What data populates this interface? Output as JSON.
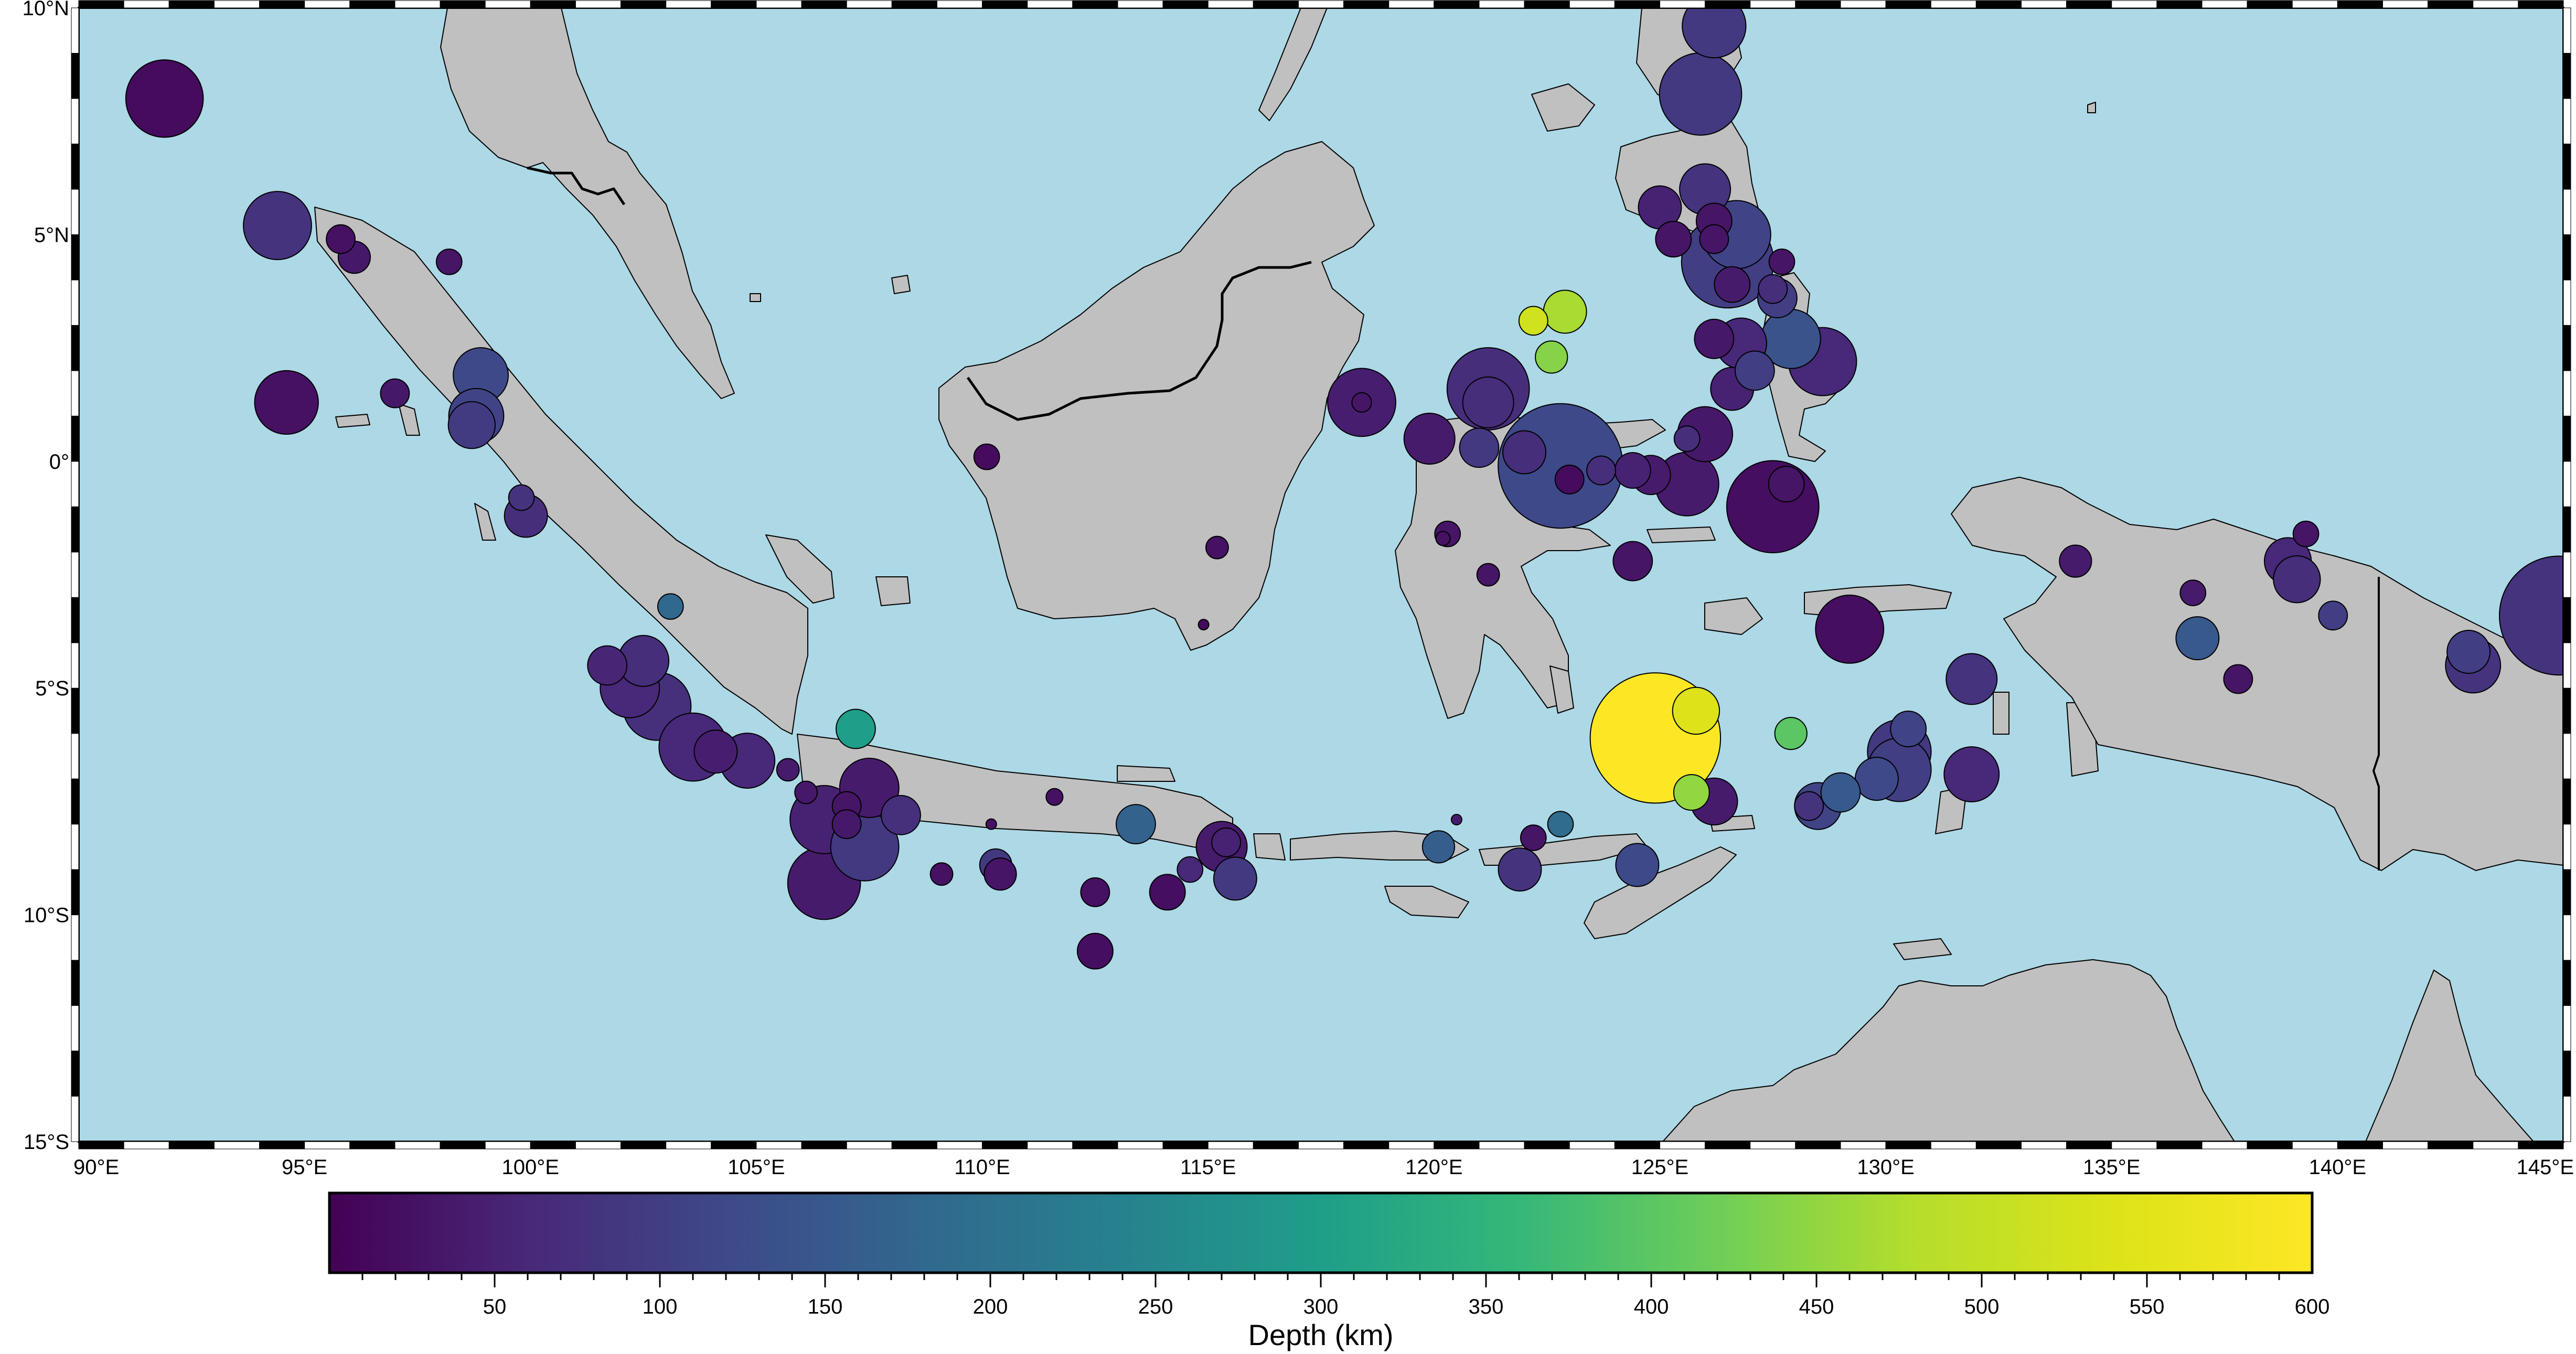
{
  "map": {
    "region": {
      "west": 90,
      "east": 145,
      "south": -15,
      "north": 10
    },
    "colors": {
      "ocean": "#add8e6",
      "land": "#c0c0c0",
      "coast": "#000000",
      "border": "#000000"
    },
    "lon_ticks": [
      "90°E",
      "95°E",
      "100°E",
      "105°E",
      "110°E",
      "115°E",
      "120°E",
      "125°E",
      "130°E",
      "135°E",
      "140°E",
      "145°E"
    ],
    "lat_ticks": [
      "10°N",
      "5°N",
      "0°",
      "5°S",
      "10°S",
      "15°S"
    ]
  },
  "colorbar": {
    "title": "Depth (km)",
    "ticks": [
      "50",
      "100",
      "150",
      "200",
      "250",
      "300",
      "350",
      "400",
      "450",
      "500",
      "550",
      "600"
    ],
    "range": [
      0,
      600
    ],
    "colormap": "viridis"
  },
  "chart_data": {
    "type": "scatter",
    "title": "",
    "xlabel": "",
    "ylabel": "",
    "color_label": "Depth (km)",
    "size_encoding": "magnitude",
    "points": [
      {
        "lon": 91.9,
        "lat": 8.0,
        "depth": 15,
        "mag": 6.2
      },
      {
        "lon": 94.4,
        "lat": 5.2,
        "depth": 80,
        "mag": 6.0
      },
      {
        "lon": 94.6,
        "lat": 1.3,
        "depth": 25,
        "mag": 5.9
      },
      {
        "lon": 95.8,
        "lat": 4.9,
        "depth": 25,
        "mag": 5.0
      },
      {
        "lon": 96.1,
        "lat": 4.5,
        "depth": 35,
        "mag": 5.1
      },
      {
        "lon": 97.0,
        "lat": 1.5,
        "depth": 35,
        "mag": 5.0
      },
      {
        "lon": 98.2,
        "lat": 4.4,
        "depth": 30,
        "mag": 4.9
      },
      {
        "lon": 98.9,
        "lat": 1.9,
        "depth": 120,
        "mag": 5.7
      },
      {
        "lon": 98.8,
        "lat": 1.0,
        "depth": 110,
        "mag": 5.7
      },
      {
        "lon": 98.7,
        "lat": 0.8,
        "depth": 95,
        "mag": 5.5
      },
      {
        "lon": 99.8,
        "lat": -0.8,
        "depth": 80,
        "mag": 4.9
      },
      {
        "lon": 99.9,
        "lat": -1.2,
        "depth": 70,
        "mag": 5.4
      },
      {
        "lon": 103.1,
        "lat": -3.2,
        "depth": 180,
        "mag": 4.9
      },
      {
        "lon": 101.7,
        "lat": -4.5,
        "depth": 55,
        "mag": 5.3
      },
      {
        "lon": 102.2,
        "lat": -5.0,
        "depth": 60,
        "mag": 5.8
      },
      {
        "lon": 102.5,
        "lat": -4.4,
        "depth": 70,
        "mag": 5.6
      },
      {
        "lon": 102.8,
        "lat": -5.4,
        "depth": 75,
        "mag": 6.0
      },
      {
        "lon": 103.6,
        "lat": -6.3,
        "depth": 60,
        "mag": 6.0
      },
      {
        "lon": 104.1,
        "lat": -6.4,
        "depth": 45,
        "mag": 5.4
      },
      {
        "lon": 104.8,
        "lat": -6.6,
        "depth": 60,
        "mag": 5.7
      },
      {
        "lon": 105.7,
        "lat": -6.8,
        "depth": 40,
        "mag": 4.8
      },
      {
        "lon": 106.1,
        "lat": -7.3,
        "depth": 35,
        "mag": 4.8
      },
      {
        "lon": 107.2,
        "lat": -5.9,
        "depth": 300,
        "mag": 5.3
      },
      {
        "lon": 107.5,
        "lat": -7.2,
        "depth": 40,
        "mag": 5.8
      },
      {
        "lon": 106.5,
        "lat": -7.9,
        "depth": 50,
        "mag": 6.0
      },
      {
        "lon": 107.0,
        "lat": -7.6,
        "depth": 30,
        "mag": 5.0
      },
      {
        "lon": 107.0,
        "lat": -8.0,
        "depth": 35,
        "mag": 5.0
      },
      {
        "lon": 107.4,
        "lat": -8.5,
        "depth": 90,
        "mag": 6.0
      },
      {
        "lon": 108.2,
        "lat": -7.8,
        "depth": 75,
        "mag": 5.3
      },
      {
        "lon": 106.5,
        "lat": -9.3,
        "depth": 40,
        "mag": 6.1
      },
      {
        "lon": 109.1,
        "lat": -9.1,
        "depth": 25,
        "mag": 4.8
      },
      {
        "lon": 110.2,
        "lat": -8.0,
        "depth": 25,
        "mag": 4.3
      },
      {
        "lon": 110.3,
        "lat": -8.9,
        "depth": 90,
        "mag": 5.1
      },
      {
        "lon": 110.4,
        "lat": -9.1,
        "depth": 30,
        "mag": 5.1
      },
      {
        "lon": 111.6,
        "lat": -7.4,
        "depth": 25,
        "mag": 4.6
      },
      {
        "lon": 112.5,
        "lat": -9.5,
        "depth": 25,
        "mag": 5.0
      },
      {
        "lon": 112.5,
        "lat": -10.8,
        "depth": 20,
        "mag": 5.2
      },
      {
        "lon": 113.4,
        "lat": -8.0,
        "depth": 170,
        "mag": 5.3
      },
      {
        "lon": 114.1,
        "lat": -9.5,
        "depth": 20,
        "mag": 5.2
      },
      {
        "lon": 114.6,
        "lat": -9.0,
        "depth": 60,
        "mag": 4.9
      },
      {
        "lon": 115.3,
        "lat": -8.5,
        "depth": 40,
        "mag": 5.6
      },
      {
        "lon": 115.4,
        "lat": -8.4,
        "depth": 50,
        "mag": 5.0
      },
      {
        "lon": 115.6,
        "lat": -9.2,
        "depth": 90,
        "mag": 5.4
      },
      {
        "lon": 110.1,
        "lat": 0.1,
        "depth": 15,
        "mag": 4.9
      },
      {
        "lon": 115.2,
        "lat": -1.9,
        "depth": 25,
        "mag": 4.8
      },
      {
        "lon": 114.9,
        "lat": -3.6,
        "depth": 15,
        "mag": 4.3
      },
      {
        "lon": 118.4,
        "lat": 1.3,
        "depth": 45,
        "mag": 6.0
      },
      {
        "lon": 118.4,
        "lat": 1.3,
        "depth": 30,
        "mag": 4.7
      },
      {
        "lon": 119.9,
        "lat": 0.5,
        "depth": 40,
        "mag": 5.6
      },
      {
        "lon": 120.3,
        "lat": -1.6,
        "depth": 30,
        "mag": 4.9
      },
      {
        "lon": 120.2,
        "lat": -1.7,
        "depth": 25,
        "mag": 4.5
      },
      {
        "lon": 121.2,
        "lat": 1.6,
        "depth": 70,
        "mag": 6.3
      },
      {
        "lon": 121.2,
        "lat": 1.3,
        "depth": 70,
        "mag": 5.6
      },
      {
        "lon": 121.0,
        "lat": 0.3,
        "depth": 90,
        "mag": 5.3
      },
      {
        "lon": 121.2,
        "lat": -2.5,
        "depth": 30,
        "mag": 4.8
      },
      {
        "lon": 120.1,
        "lat": -8.5,
        "depth": 160,
        "mag": 5.1
      },
      {
        "lon": 120.5,
        "lat": -7.9,
        "depth": 40,
        "mag": 4.3
      },
      {
        "lon": 122.0,
        "lat": 0.2,
        "depth": 70,
        "mag": 5.4
      },
      {
        "lon": 122.8,
        "lat": -0.1,
        "depth": 120,
        "mag": 7.1
      },
      {
        "lon": 123.0,
        "lat": -0.4,
        "depth": 15,
        "mag": 5.0
      },
      {
        "lon": 122.2,
        "lat": 3.1,
        "depth": 520,
        "mag": 5.0
      },
      {
        "lon": 122.9,
        "lat": 3.3,
        "depth": 470,
        "mag": 5.4
      },
      {
        "lon": 122.6,
        "lat": 2.3,
        "depth": 440,
        "mag": 5.1
      },
      {
        "lon": 123.7,
        "lat": -0.2,
        "depth": 70,
        "mag": 5.0
      },
      {
        "lon": 124.4,
        "lat": -0.2,
        "depth": 50,
        "mag": 5.2
      },
      {
        "lon": 124.4,
        "lat": -2.2,
        "depth": 30,
        "mag": 5.3
      },
      {
        "lon": 122.2,
        "lat": -8.3,
        "depth": 30,
        "mag": 4.9
      },
      {
        "lon": 122.8,
        "lat": -8.0,
        "depth": 190,
        "mag": 4.9
      },
      {
        "lon": 121.9,
        "lat": -9.0,
        "depth": 80,
        "mag": 5.4
      },
      {
        "lon": 124.5,
        "lat": -8.9,
        "depth": 120,
        "mag": 5.4
      },
      {
        "lon": 124.9,
        "lat": -6.1,
        "depth": 600,
        "mag": 7.2
      },
      {
        "lon": 125.8,
        "lat": -5.5,
        "depth": 540,
        "mag": 5.5
      },
      {
        "lon": 125.7,
        "lat": -7.3,
        "depth": 450,
        "mag": 5.2
      },
      {
        "lon": 126.2,
        "lat": -7.5,
        "depth": 40,
        "mag": 5.5
      },
      {
        "lon": 127.9,
        "lat": -6.0,
        "depth": 400,
        "mag": 5.1
      },
      {
        "lon": 124.8,
        "lat": -0.3,
        "depth": 40,
        "mag": 5.3
      },
      {
        "lon": 125.6,
        "lat": 0.5,
        "depth": 70,
        "mag": 4.9
      },
      {
        "lon": 125.6,
        "lat": -0.5,
        "depth": 40,
        "mag": 5.9
      },
      {
        "lon": 126.0,
        "lat": 0.6,
        "depth": 35,
        "mag": 5.7
      },
      {
        "lon": 126.2,
        "lat": 9.6,
        "depth": 90,
        "mag": 5.9
      },
      {
        "lon": 125.9,
        "lat": 8.1,
        "depth": 90,
        "mag": 6.3
      },
      {
        "lon": 126.0,
        "lat": 6.0,
        "depth": 80,
        "mag": 5.6
      },
      {
        "lon": 125.0,
        "lat": 5.6,
        "depth": 50,
        "mag": 5.4
      },
      {
        "lon": 125.3,
        "lat": 4.9,
        "depth": 30,
        "mag": 5.2
      },
      {
        "lon": 126.2,
        "lat": 5.3,
        "depth": 30,
        "mag": 5.2
      },
      {
        "lon": 126.2,
        "lat": 4.9,
        "depth": 30,
        "mag": 5.0
      },
      {
        "lon": 126.7,
        "lat": 5.0,
        "depth": 110,
        "mag": 6.0
      },
      {
        "lon": 126.5,
        "lat": 4.4,
        "depth": 100,
        "mag": 6.5
      },
      {
        "lon": 126.6,
        "lat": 3.9,
        "depth": 40,
        "mag": 5.2
      },
      {
        "lon": 127.7,
        "lat": 4.4,
        "depth": 30,
        "mag": 4.9
      },
      {
        "lon": 127.6,
        "lat": 3.6,
        "depth": 100,
        "mag": 5.3
      },
      {
        "lon": 127.5,
        "lat": 3.8,
        "depth": 70,
        "mag": 5.0
      },
      {
        "lon": 126.2,
        "lat": 2.7,
        "depth": 35,
        "mag": 5.3
      },
      {
        "lon": 126.8,
        "lat": 2.6,
        "depth": 60,
        "mag": 5.6
      },
      {
        "lon": 127.9,
        "lat": 2.7,
        "depth": 140,
        "mag": 5.8
      },
      {
        "lon": 127.1,
        "lat": 2.0,
        "depth": 100,
        "mag": 5.3
      },
      {
        "lon": 126.6,
        "lat": 1.6,
        "depth": 50,
        "mag": 5.4
      },
      {
        "lon": 128.6,
        "lat": 2.2,
        "depth": 60,
        "mag": 6.0
      },
      {
        "lon": 127.5,
        "lat": -1.0,
        "depth": 20,
        "mag": 6.5
      },
      {
        "lon": 127.8,
        "lat": -0.5,
        "depth": 30,
        "mag": 5.2
      },
      {
        "lon": 129.2,
        "lat": -3.7,
        "depth": 20,
        "mag": 6.0
      },
      {
        "lon": 128.5,
        "lat": -7.6,
        "depth": 110,
        "mag": 5.5
      },
      {
        "lon": 128.3,
        "lat": -7.6,
        "depth": 80,
        "mag": 5.0
      },
      {
        "lon": 129.0,
        "lat": -7.3,
        "depth": 150,
        "mag": 5.3
      },
      {
        "lon": 129.8,
        "lat": -7.0,
        "depth": 120,
        "mag": 5.4
      },
      {
        "lon": 130.3,
        "lat": -6.4,
        "depth": 90,
        "mag": 5.9
      },
      {
        "lon": 130.3,
        "lat": -6.8,
        "depth": 100,
        "mag": 5.9
      },
      {
        "lon": 130.5,
        "lat": -5.9,
        "depth": 110,
        "mag": 5.2
      },
      {
        "lon": 131.9,
        "lat": -4.8,
        "depth": 80,
        "mag": 5.6
      },
      {
        "lon": 131.9,
        "lat": -6.9,
        "depth": 60,
        "mag": 5.7
      },
      {
        "lon": 134.2,
        "lat": -2.2,
        "depth": 40,
        "mag": 5.1
      },
      {
        "lon": 136.8,
        "lat": -2.9,
        "depth": 40,
        "mag": 4.9
      },
      {
        "lon": 136.9,
        "lat": -3.9,
        "depth": 150,
        "mag": 5.4
      },
      {
        "lon": 137.8,
        "lat": -4.8,
        "depth": 30,
        "mag": 5.0
      },
      {
        "lon": 138.9,
        "lat": -2.2,
        "depth": 60,
        "mag": 5.5
      },
      {
        "lon": 139.1,
        "lat": -2.6,
        "depth": 70,
        "mag": 5.5
      },
      {
        "lon": 139.3,
        "lat": -1.6,
        "depth": 30,
        "mag": 4.9
      },
      {
        "lon": 139.9,
        "lat": -3.4,
        "depth": 100,
        "mag": 5.0
      },
      {
        "lon": 142.9,
        "lat": -4.2,
        "depth": 100,
        "mag": 5.4
      },
      {
        "lon": 143.0,
        "lat": -4.5,
        "depth": 80,
        "mag": 5.7
      },
      {
        "lon": 144.9,
        "lat": -3.4,
        "depth": 80,
        "mag": 7.0
      }
    ]
  }
}
